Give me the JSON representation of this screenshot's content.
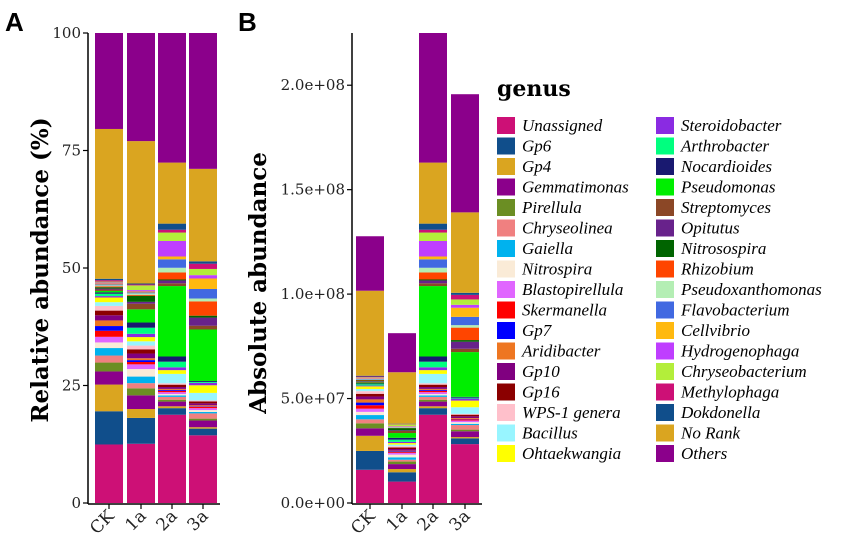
{
  "chart_data": [
    {
      "panel_label": "A",
      "type": "bar",
      "stacked": true,
      "ylabel": "Relative abundance (%)",
      "ylim": [
        0,
        100
      ],
      "yticks": [
        "0",
        "25",
        "50",
        "75",
        "100"
      ],
      "ytick_values": [
        0,
        25,
        50,
        75,
        100
      ]
    },
    {
      "panel_label": "B",
      "type": "bar",
      "stacked": true,
      "ylabel": "Absolute abundance",
      "ylim": [
        0,
        225000000
      ],
      "yticks": [
        "0.0e+00",
        "5.0e+07",
        "1.0e+08",
        "1.5e+08",
        "2.0e+08"
      ],
      "ytick_values": [
        0,
        50000000,
        100000000,
        150000000,
        200000000
      ],
      "totals": [
        127700000,
        81300000,
        225000000,
        195700000
      ]
    }
  ],
  "categories": [
    "CK",
    "1a",
    "2a",
    "3a"
  ],
  "legend": {
    "title": "genus",
    "placement": "right"
  },
  "series": [
    {
      "name": "Unassigned",
      "color": "#CD1076",
      "values": [
        12.5,
        12.6,
        18.8,
        14.2
      ]
    },
    {
      "name": "Gp6",
      "color": "#104E8B",
      "values": [
        7.1,
        5.5,
        1.4,
        1.4
      ]
    },
    {
      "name": "Gp4",
      "color": "#DAA520",
      "values": [
        5.7,
        1.9,
        0.4,
        0.3
      ]
    },
    {
      "name": "Gemmatimonas",
      "color": "#8B008B",
      "values": [
        2.8,
        2.9,
        1.0,
        1.4
      ]
    },
    {
      "name": "Pirellula",
      "color": "#6B8E23",
      "values": [
        1.9,
        1.5,
        0.4,
        0.4
      ]
    },
    {
      "name": "Chryseolinea",
      "color": "#F08080",
      "values": [
        1.5,
        1.1,
        0.6,
        1.1
      ]
    },
    {
      "name": "Gaiella",
      "color": "#00B2EE",
      "values": [
        1.6,
        1.4,
        0.3,
        0.3
      ]
    },
    {
      "name": "Nitrospira",
      "color": "#FAEBD7",
      "values": [
        1.2,
        1.6,
        0.3,
        0.4
      ]
    },
    {
      "name": "Blastopirellula",
      "color": "#E066FF",
      "values": [
        1.2,
        1.0,
        0.4,
        0.4
      ]
    },
    {
      "name": "Skermanella",
      "color": "#FF0000",
      "values": [
        1.3,
        0.5,
        0.3,
        0.3
      ]
    },
    {
      "name": "Gp7",
      "color": "#0000FF",
      "values": [
        1.0,
        0.4,
        0.2,
        0.1
      ]
    },
    {
      "name": "Aridibacter",
      "color": "#EE7621",
      "values": [
        1.2,
        0.4,
        0.2,
        0.2
      ]
    },
    {
      "name": "Gp10",
      "color": "#800080",
      "values": [
        1.1,
        1.0,
        0.4,
        0.4
      ]
    },
    {
      "name": "Gp16",
      "color": "#8B0000",
      "values": [
        1.0,
        0.9,
        0.5,
        0.4
      ]
    },
    {
      "name": "WPS-1 genera",
      "color": "#FFC0CB",
      "values": [
        1.0,
        0.8,
        0.3,
        0.2
      ]
    },
    {
      "name": "Bacillus",
      "color": "#98F5FF",
      "values": [
        0.8,
        0.9,
        2.0,
        1.6
      ]
    },
    {
      "name": "Ohtaekwangia",
      "color": "#FFFF00",
      "values": [
        1.0,
        0.9,
        0.8,
        1.6
      ]
    },
    {
      "name": "Steroidobacter",
      "color": "#8A2BE2",
      "values": [
        0.3,
        0.7,
        0.6,
        0.5
      ]
    },
    {
      "name": "Arthrobacter",
      "color": "#00FF7F",
      "values": [
        0.5,
        1.3,
        1.2,
        0.2
      ]
    },
    {
      "name": "Nocardioides",
      "color": "#191970",
      "values": [
        0.3,
        1.1,
        1.1,
        0.2
      ]
    },
    {
      "name": "Pseudomonas",
      "color": "#00EE00",
      "values": [
        0.3,
        2.8,
        15.0,
        10.8
      ]
    },
    {
      "name": "Streptomyces",
      "color": "#8B4726",
      "values": [
        0.3,
        1.2,
        0.6,
        0.8
      ]
    },
    {
      "name": "Opitutus",
      "color": "#68228B",
      "values": [
        0.2,
        0.4,
        0.6,
        1.7
      ]
    },
    {
      "name": "Nitrosospira",
      "color": "#006400",
      "values": [
        0.3,
        1.3,
        0.2,
        0.4
      ]
    },
    {
      "name": "Rhizobium",
      "color": "#FF4500",
      "values": [
        0.2,
        0.2,
        1.5,
        3.0
      ]
    },
    {
      "name": "Pseudoxanthomonas",
      "color": "#B4EEB4",
      "values": [
        0.2,
        0.3,
        1.0,
        0.6
      ]
    },
    {
      "name": "Flavobacterium",
      "color": "#4169E1",
      "values": [
        0.2,
        0.2,
        1.8,
        2.0
      ]
    },
    {
      "name": "Cellvibrio",
      "color": "#FFB90F",
      "values": [
        0.2,
        0.2,
        0.6,
        2.2
      ]
    },
    {
      "name": "Hydrogenophaga",
      "color": "#BF3EFF",
      "values": [
        0.2,
        0.3,
        3.3,
        0.7
      ]
    },
    {
      "name": "Chryseobacterium",
      "color": "#B3EE3A",
      "values": [
        0.2,
        1.0,
        1.8,
        1.3
      ]
    },
    {
      "name": "Methylophaga",
      "color": "#CD1076",
      "values": [
        0.3,
        0.2,
        0.6,
        1.1
      ]
    },
    {
      "name": "Dokdonella",
      "color": "#104E8B",
      "values": [
        0.3,
        0.2,
        1.3,
        0.5
      ]
    },
    {
      "name": "No Rank",
      "color": "#DAA520",
      "values": [
        32.0,
        30.3,
        13.0,
        19.4
      ]
    },
    {
      "name": "Others",
      "color": "#8B008B",
      "values": [
        20.5,
        23.0,
        27.6,
        28.5
      ]
    }
  ]
}
